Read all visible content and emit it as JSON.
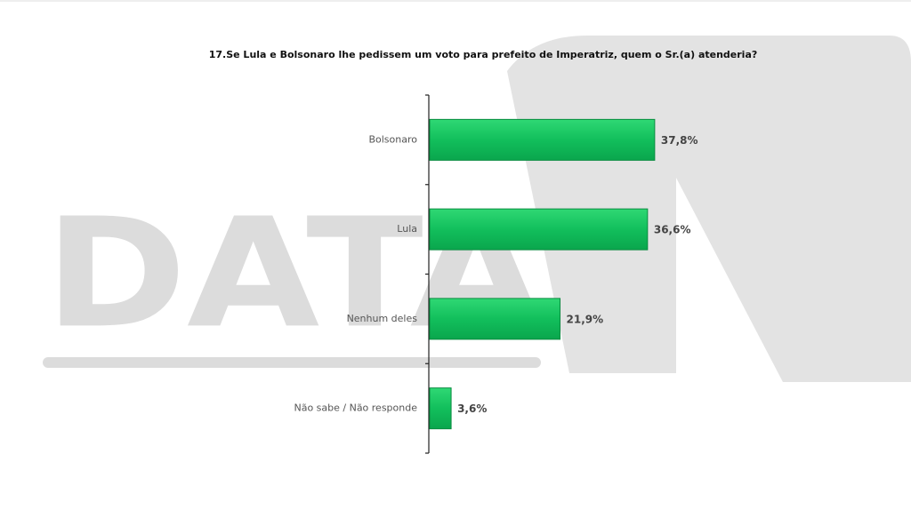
{
  "chart_data": {
    "type": "bar",
    "orientation": "horizontal",
    "title": "17.Se Lula e Bolsonaro lhe pedissem um voto para prefeito de Imperatriz, quem o Sr.(a) atenderia?",
    "watermark": "DATA",
    "categories": [
      "Bolsonaro",
      "Lula",
      "Nenhum deles",
      "Não sabe / Não responde"
    ],
    "values": [
      37.8,
      36.6,
      21.9,
      3.6
    ],
    "value_labels": [
      "37,8%",
      "36,6%",
      "21,9%",
      "3,6%"
    ],
    "color": "#12bf5c"
  }
}
